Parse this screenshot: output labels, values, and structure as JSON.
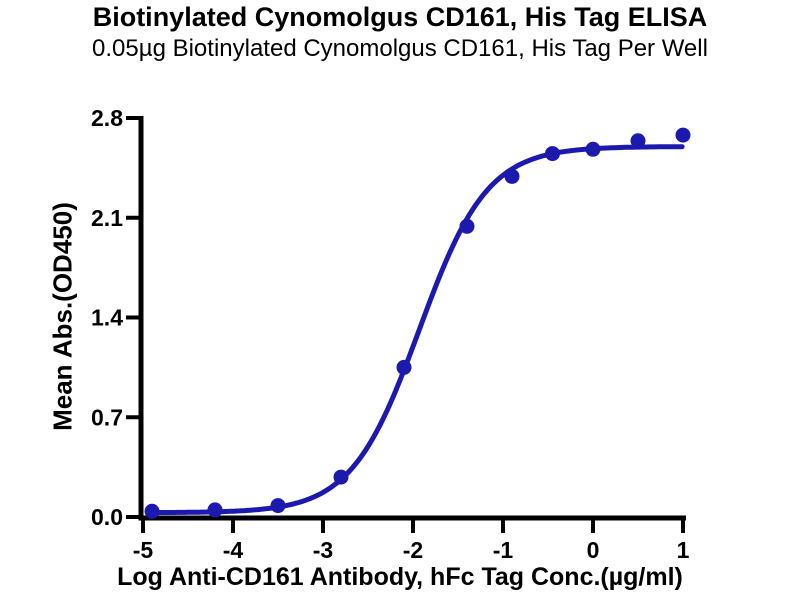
{
  "page": {
    "background": "#ffffff"
  },
  "chart_data": {
    "type": "scatter",
    "title": "Biotinylated Cynomolgus CD161, His Tag ELISA",
    "subtitle": "0.05µg Biotinylated Cynomolgus CD161, His Tag Per Well",
    "xlabel": "Log Anti-CD161 Antibody, hFc Tag Conc.(µg/ml)",
    "ylabel": "Mean Abs.(OD450)",
    "xlim": [
      -5,
      1
    ],
    "ylim": [
      0.0,
      2.8
    ],
    "x_ticks": [
      -5,
      -4,
      -3,
      -2,
      -1,
      0,
      1
    ],
    "y_ticks": [
      "0.0",
      "0.7",
      "1.4",
      "2.1",
      "2.8"
    ],
    "grid": false,
    "legend_position": "none",
    "axis_color": "#000000",
    "series": [
      {
        "name": "Anti-CD161 Antibody, hFc Tag",
        "marker": "circle",
        "marker_color": "#1c1aae",
        "x": [
          -4.9,
          -4.2,
          -3.5,
          -2.8,
          -2.1,
          -1.4,
          -0.9,
          -0.45,
          0.0,
          0.5,
          1.0
        ],
        "y": [
          0.04,
          0.05,
          0.08,
          0.28,
          1.05,
          2.04,
          2.39,
          2.55,
          2.58,
          2.64,
          2.68
        ]
      }
    ],
    "fit_curve": {
      "model": "4PL sigmoid",
      "bottom": 0.03,
      "top": 2.6,
      "log_ec50": -1.93,
      "hill_slope": 1.15,
      "x_start": -4.92,
      "x_end": 1.0,
      "color": "#1c1aae"
    }
  }
}
